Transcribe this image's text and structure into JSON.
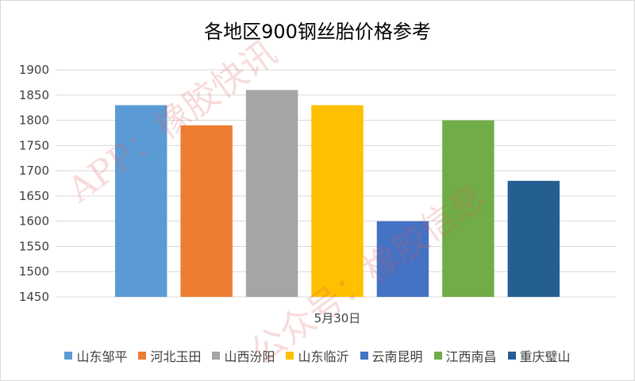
{
  "chart_data": {
    "type": "bar",
    "title": "各地区900钢丝胎价格参考",
    "categories": [
      "5月30日"
    ],
    "series": [
      {
        "name": "山东邹平",
        "values": [
          1830
        ],
        "color": "#5B9BD5"
      },
      {
        "name": "河北玉田",
        "values": [
          1790
        ],
        "color": "#ED7D31"
      },
      {
        "name": "山西汾阳",
        "values": [
          1860
        ],
        "color": "#A5A5A5"
      },
      {
        "name": "山东临沂",
        "values": [
          1830
        ],
        "color": "#FFC000"
      },
      {
        "name": "云南昆明",
        "values": [
          1600
        ],
        "color": "#4472C4"
      },
      {
        "name": "江西南昌",
        "values": [
          1800
        ],
        "color": "#70AD47"
      },
      {
        "name": "重庆璧山",
        "values": [
          1680
        ],
        "color": "#255E91"
      }
    ],
    "ylim": [
      1450,
      1900
    ],
    "yticks": [
      1450,
      1500,
      1550,
      1600,
      1650,
      1700,
      1750,
      1800,
      1850,
      1900
    ],
    "grid": true,
    "legend_position": "bottom"
  },
  "watermarks": [
    "APP：橡胶快讯",
    "公众号：橡胶信息"
  ]
}
